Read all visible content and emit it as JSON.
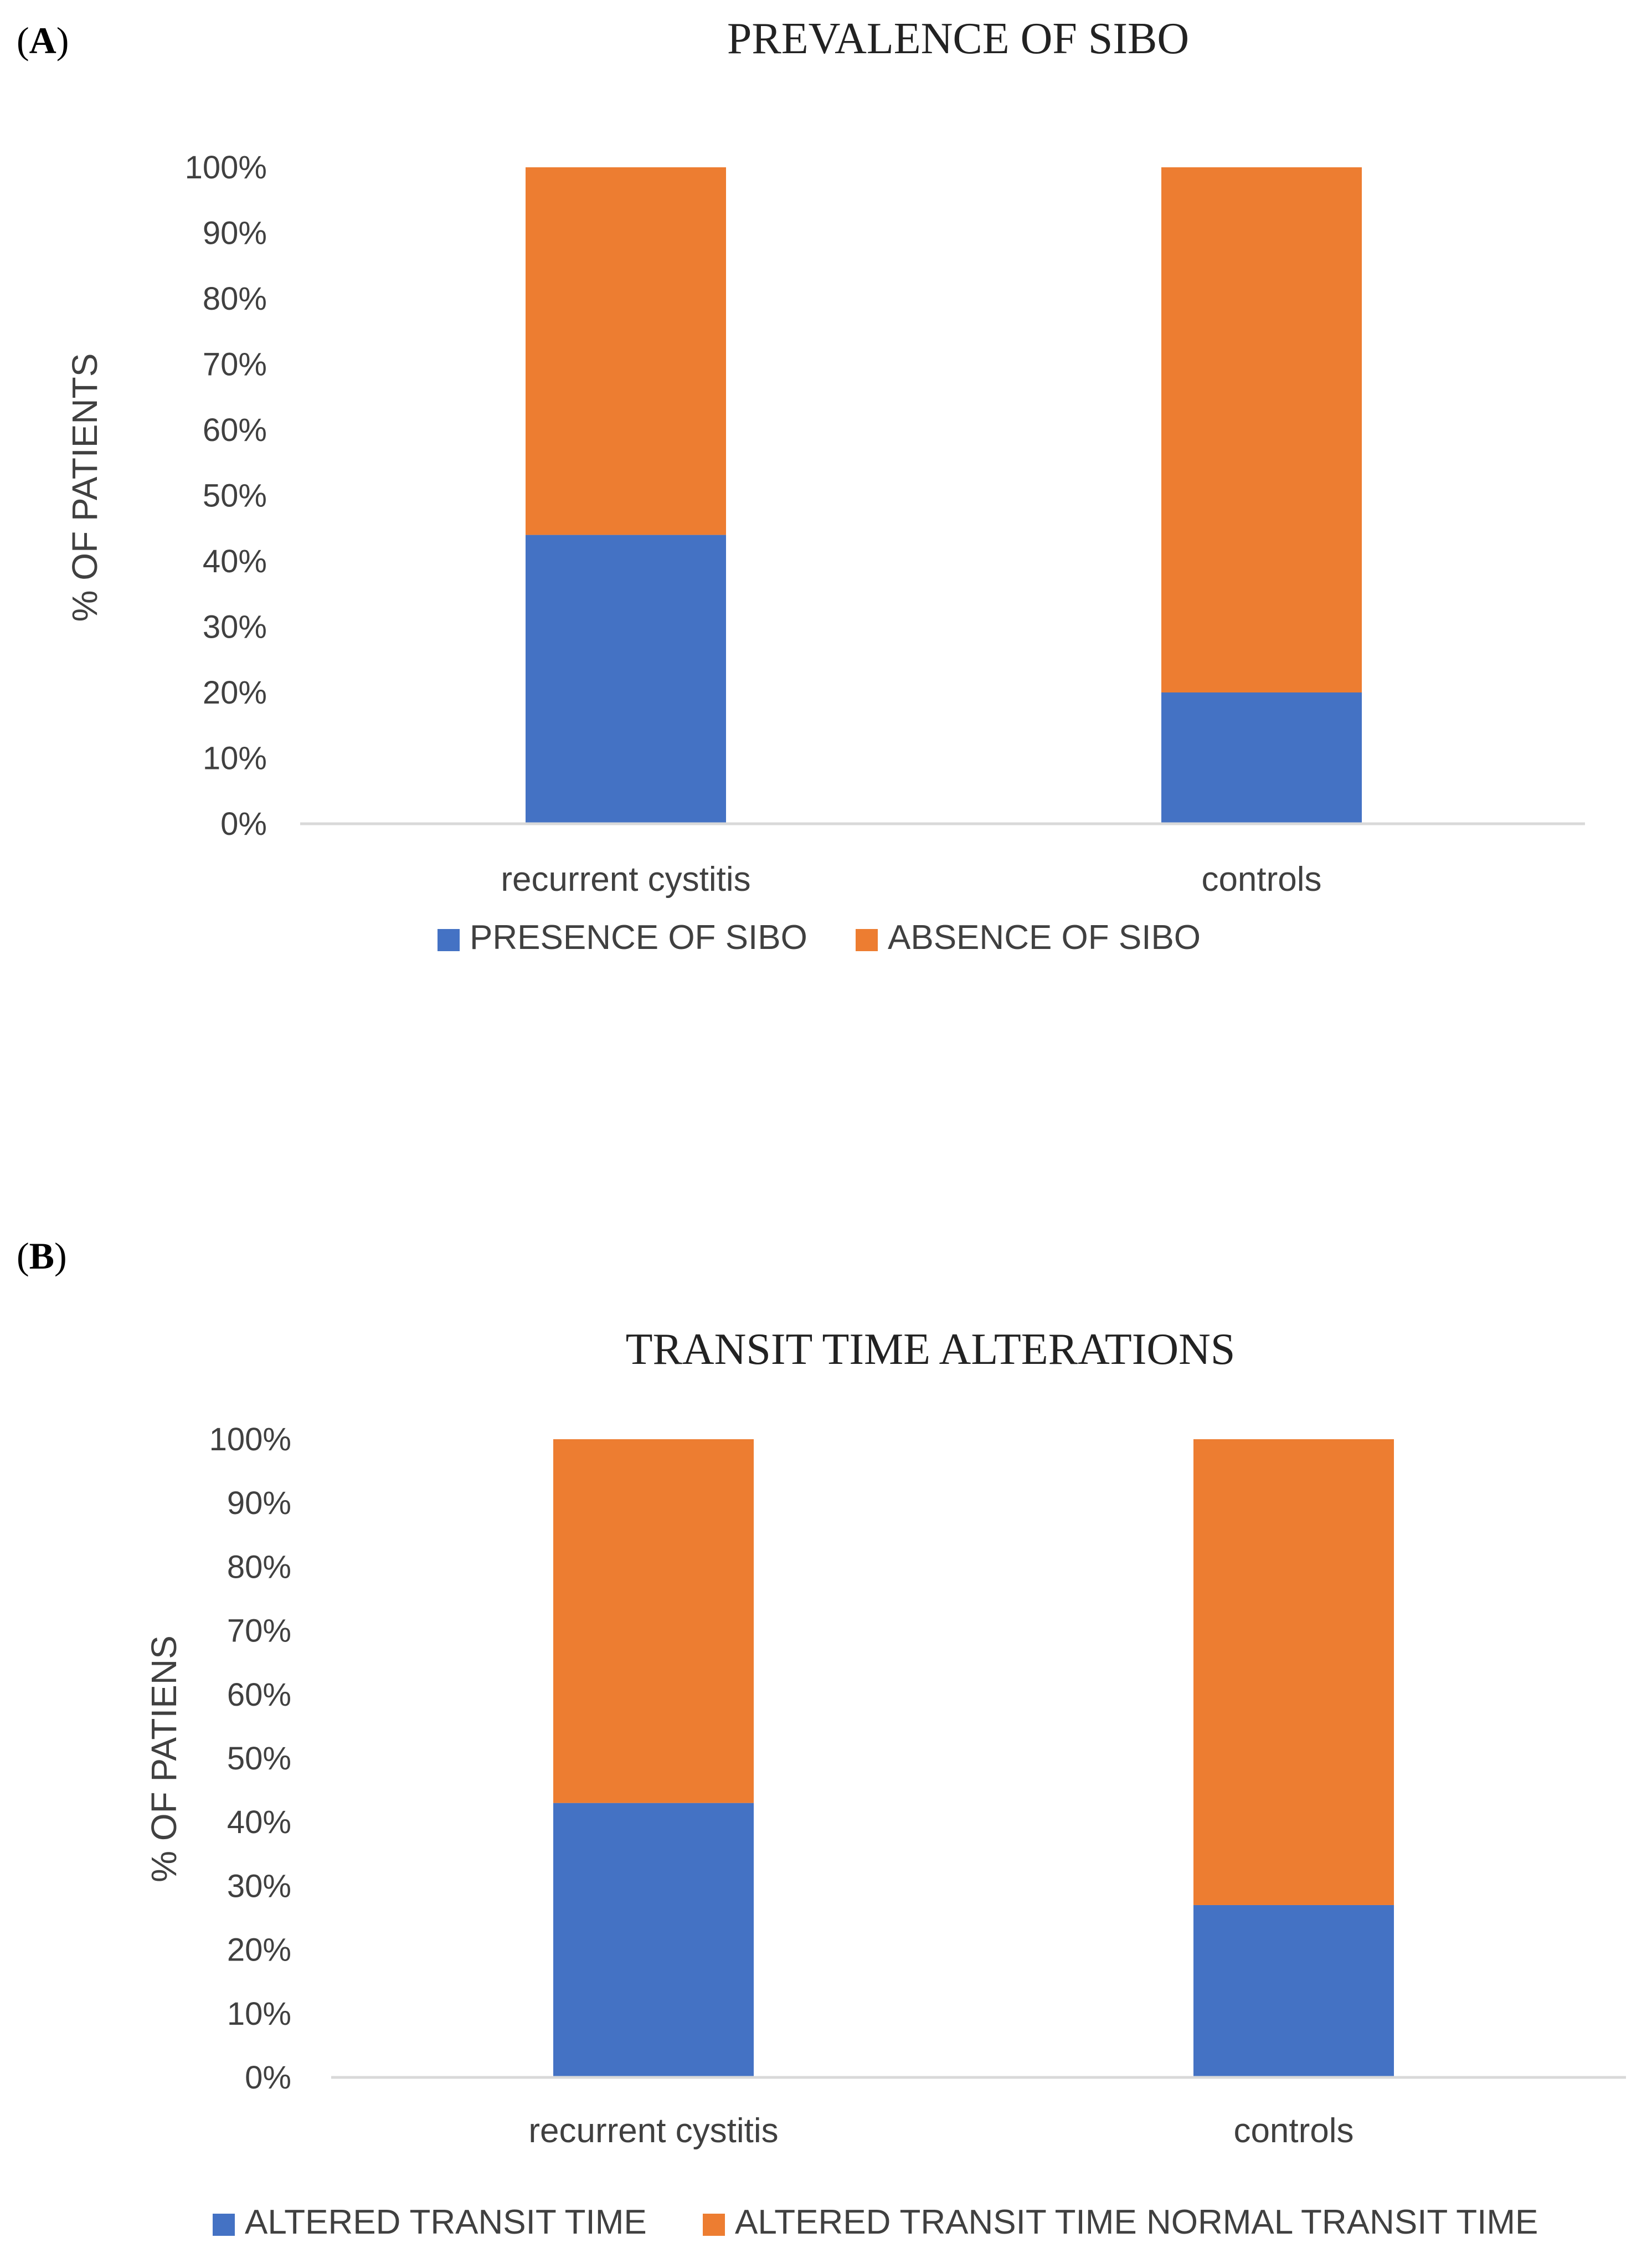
{
  "panels": {
    "a": {
      "paren_open": "(",
      "letter": "A",
      "paren_close": ")"
    },
    "b": {
      "paren_open": "(",
      "letter": "B",
      "paren_close": ")"
    }
  },
  "colors": {
    "series_1": "#4472C4",
    "series_2": "#ED7D31",
    "axis": "#D9D9D9"
  },
  "chart_data": [
    {
      "type": "bar",
      "stacked": true,
      "percent_stacked": true,
      "title": "PREVALENCE OF SIBO",
      "xlabel": "",
      "ylabel": "% OF PATIENTS",
      "categories": [
        "recurrent cystitis",
        "controls"
      ],
      "series": [
        {
          "name": "PRESENCE OF SIBO",
          "values": [
            44,
            20
          ]
        },
        {
          "name": "ABSENCE OF SIBO",
          "values": [
            56,
            80
          ]
        }
      ],
      "yticks": [
        "0%",
        "10%",
        "20%",
        "30%",
        "40%",
        "50%",
        "60%",
        "70%",
        "80%",
        "90%",
        "100%"
      ],
      "ylim": [
        0,
        100
      ],
      "grid": false,
      "legend": "bottom"
    },
    {
      "type": "bar",
      "stacked": true,
      "percent_stacked": true,
      "title": "TRANSIT TIME ALTERATIONS",
      "xlabel": "",
      "ylabel": "% OF PATIENS",
      "categories": [
        "recurrent cystitis",
        "controls"
      ],
      "series": [
        {
          "name": "ALTERED TRANSIT TIME",
          "values": [
            43,
            27
          ]
        },
        {
          "name": "ALTERED TRANSIT TIME NORMAL TRANSIT TIME",
          "values": [
            57,
            73
          ]
        }
      ],
      "yticks": [
        "0%",
        "10%",
        "20%",
        "30%",
        "40%",
        "50%",
        "60%",
        "70%",
        "80%",
        "90%",
        "100%"
      ],
      "ylim": [
        0,
        100
      ],
      "grid": false,
      "legend": "bottom"
    }
  ]
}
